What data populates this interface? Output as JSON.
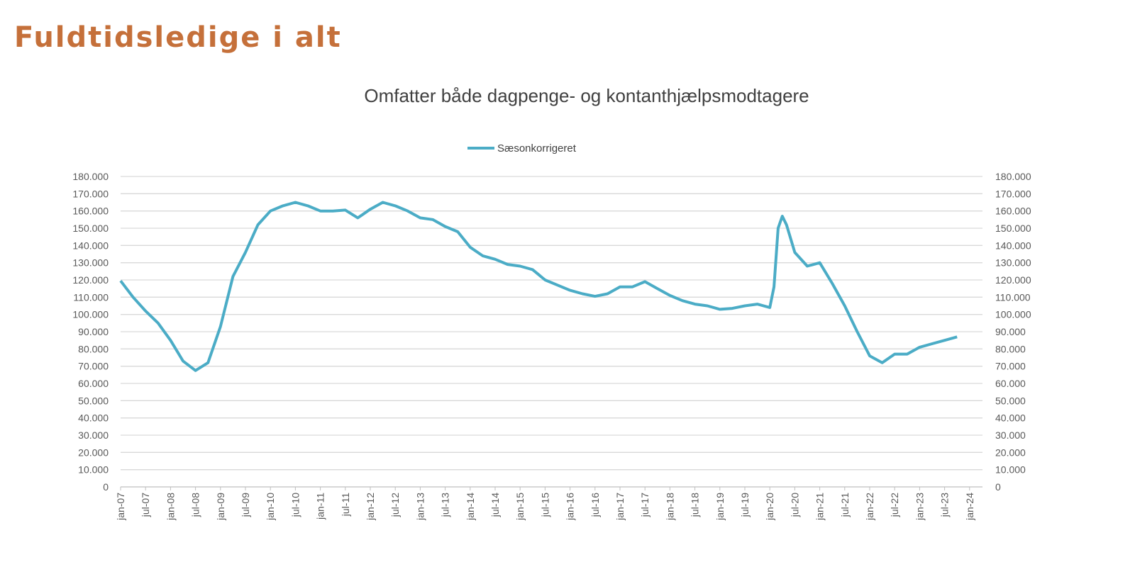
{
  "slide_title": "Fuldtidsledige i alt",
  "chart_data": {
    "type": "line",
    "title": "Omfatter både dagpenge- og kontanthjælpsmodtagere",
    "legend_position": "top",
    "grid": true,
    "line_color": "#4BACC6",
    "ylim": [
      0,
      180000
    ],
    "y_ticks": [
      "0",
      "10.000",
      "20.000",
      "30.000",
      "40.000",
      "50.000",
      "60.000",
      "70.000",
      "80.000",
      "90.000",
      "100.000",
      "110.000",
      "120.000",
      "130.000",
      "140.000",
      "150.000",
      "160.000",
      "170.000",
      "180.000"
    ],
    "secondary_y_ticks": [
      "0",
      "10.000",
      "20.000",
      "30.000",
      "40.000",
      "50.000",
      "60.000",
      "70.000",
      "80.000",
      "90.000",
      "100.000",
      "110.000",
      "120.000",
      "130.000",
      "140.000",
      "150.000",
      "160.000",
      "170.000",
      "180.000"
    ],
    "x_ticks": [
      "jan-07",
      "jul-07",
      "jan-08",
      "jul-08",
      "jan-09",
      "jul-09",
      "jan-10",
      "jul-10",
      "jan-11",
      "jul-11",
      "jan-12",
      "jul-12",
      "jan-13",
      "jul-13",
      "jan-14",
      "jul-14",
      "jan-15",
      "jul-15",
      "jan-16",
      "jul-16",
      "jan-17",
      "jul-17",
      "jan-18",
      "jul-18",
      "jan-19",
      "jul-19",
      "jan-20",
      "jul-20",
      "jan-21",
      "jul-21",
      "jan-22",
      "jul-22",
      "jan-23",
      "jul-23",
      "jan-24"
    ],
    "series": [
      {
        "name": "Sæsonkorrigeret",
        "x": [
          "2007-01",
          "2007-04",
          "2007-07",
          "2007-10",
          "2008-01",
          "2008-04",
          "2008-07",
          "2008-10",
          "2009-01",
          "2009-04",
          "2009-07",
          "2009-10",
          "2010-01",
          "2010-04",
          "2010-07",
          "2010-10",
          "2011-01",
          "2011-04",
          "2011-07",
          "2011-10",
          "2012-01",
          "2012-04",
          "2012-07",
          "2012-10",
          "2013-01",
          "2013-04",
          "2013-07",
          "2013-10",
          "2014-01",
          "2014-04",
          "2014-07",
          "2014-10",
          "2015-01",
          "2015-04",
          "2015-07",
          "2015-10",
          "2016-01",
          "2016-04",
          "2016-07",
          "2016-10",
          "2017-01",
          "2017-04",
          "2017-07",
          "2017-10",
          "2018-01",
          "2018-04",
          "2018-07",
          "2018-10",
          "2019-01",
          "2019-04",
          "2019-07",
          "2019-10",
          "2020-01",
          "2020-02",
          "2020-03",
          "2020-04",
          "2020-05",
          "2020-07",
          "2020-10",
          "2021-01",
          "2021-04",
          "2021-07",
          "2021-10",
          "2022-01",
          "2022-04",
          "2022-07",
          "2022-10",
          "2023-01",
          "2023-04",
          "2023-07",
          "2023-10"
        ],
        "values": [
          119500,
          110000,
          102000,
          95000,
          85000,
          73000,
          67500,
          72000,
          93000,
          122000,
          136000,
          152000,
          160000,
          163000,
          165000,
          163000,
          160000,
          160000,
          160500,
          156000,
          161000,
          165000,
          163000,
          160000,
          156000,
          155000,
          151000,
          148000,
          139000,
          134000,
          132000,
          129000,
          128000,
          126000,
          120000,
          117000,
          114000,
          112000,
          110500,
          112000,
          116000,
          116000,
          119000,
          115000,
          111000,
          108000,
          106000,
          105000,
          103000,
          103500,
          105000,
          106000,
          104000,
          116000,
          150000,
          157000,
          152000,
          136000,
          128000,
          130000,
          118000,
          105000,
          90000,
          76000,
          72000,
          77000,
          77000,
          81000,
          83000,
          85000,
          87000
        ]
      }
    ]
  }
}
